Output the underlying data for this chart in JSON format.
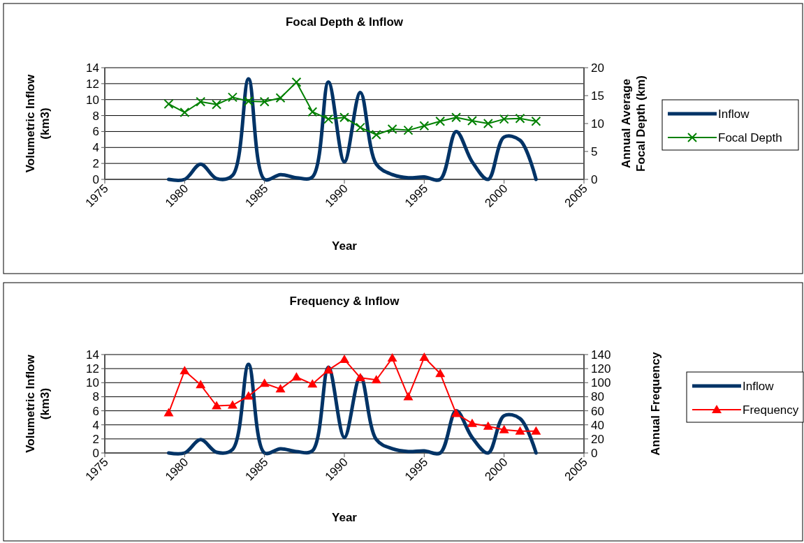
{
  "chart_data": [
    {
      "type": "line",
      "title": "Focal Depth & Inflow",
      "xlabel": "Year",
      "ylabel": "Volumetric  Inflow\n(km3)",
      "y2label": "Annual Average\nFocal Depth (km)",
      "x": [
        1979,
        1980,
        1981,
        1982,
        1983,
        1984,
        1985,
        1986,
        1987,
        1988,
        1989,
        1990,
        1991,
        1992,
        1993,
        1994,
        1995,
        1996,
        1997,
        1998,
        1999,
        2000,
        2001,
        2002
      ],
      "series": [
        {
          "name": "Inflow",
          "color": "#003366",
          "marker": "none",
          "values": [
            0,
            0,
            1.9,
            0.1,
            0.5,
            12.6,
            0,
            0.6,
            0.2,
            0.3,
            12.2,
            2.2,
            10.9,
            1.9,
            0.6,
            0.2,
            0.3,
            0,
            6.0,
            2.2,
            0,
            5.3,
            4.9,
            0
          ]
        },
        {
          "name": "Focal Depth",
          "color": "#008000",
          "marker": "cross",
          "axis": "y2",
          "values": [
            13.5,
            12.0,
            13.9,
            13.4,
            14.7,
            14.0,
            13.9,
            14.6,
            17.4,
            12.1,
            10.8,
            11.1,
            9.3,
            8.0,
            9.0,
            8.8,
            9.6,
            10.4,
            11.1,
            10.5,
            10.0,
            10.8,
            10.9,
            10.4
          ]
        }
      ],
      "xlim": [
        1975,
        2005
      ],
      "xticks": [
        1975,
        1980,
        1985,
        1990,
        1995,
        2000,
        2005
      ],
      "ylim": [
        0,
        14
      ],
      "yticks": [
        0,
        2,
        4,
        6,
        8,
        10,
        12,
        14
      ],
      "y2lim": [
        0,
        20
      ],
      "y2ticks": [
        0,
        5,
        10,
        15,
        20
      ],
      "grid": "y",
      "legend": "right",
      "line_style": "solid"
    },
    {
      "type": "line",
      "title": "Frequency & Inflow",
      "xlabel": "Year",
      "ylabel": "Volumetric Inflow\n(km3)",
      "y2label": "Annual Frequency",
      "x": [
        1979,
        1980,
        1981,
        1982,
        1983,
        1984,
        1985,
        1986,
        1987,
        1988,
        1989,
        1990,
        1991,
        1992,
        1993,
        1994,
        1995,
        1996,
        1997,
        1998,
        1999,
        2000,
        2001,
        2002
      ],
      "series": [
        {
          "name": "Inflow",
          "color": "#003366",
          "marker": "none",
          "values": [
            0,
            0,
            1.9,
            0.1,
            0.5,
            12.6,
            0,
            0.6,
            0.2,
            0.3,
            12.2,
            2.2,
            10.9,
            1.9,
            0.6,
            0.2,
            0.3,
            0,
            6.0,
            2.2,
            0,
            5.3,
            4.9,
            0
          ]
        },
        {
          "name": "Frequency",
          "color": "#ff0000",
          "marker": "triangle",
          "axis": "y2",
          "values": [
            57,
            117,
            97,
            67,
            68,
            81,
            99,
            91,
            108,
            98,
            118,
            133,
            107,
            104,
            135,
            80,
            136,
            113,
            56,
            42,
            38,
            33,
            31,
            31
          ]
        }
      ],
      "xlim": [
        1975,
        2005
      ],
      "xticks": [
        1975,
        1980,
        1985,
        1990,
        1995,
        2000,
        2005
      ],
      "ylim": [
        0,
        14
      ],
      "yticks": [
        0,
        2,
        4,
        6,
        8,
        10,
        12,
        14
      ],
      "y2lim": [
        0,
        140
      ],
      "y2ticks": [
        0,
        20,
        40,
        60,
        80,
        100,
        120,
        140
      ],
      "grid": "y",
      "legend": "right",
      "line_style": "solid"
    }
  ]
}
